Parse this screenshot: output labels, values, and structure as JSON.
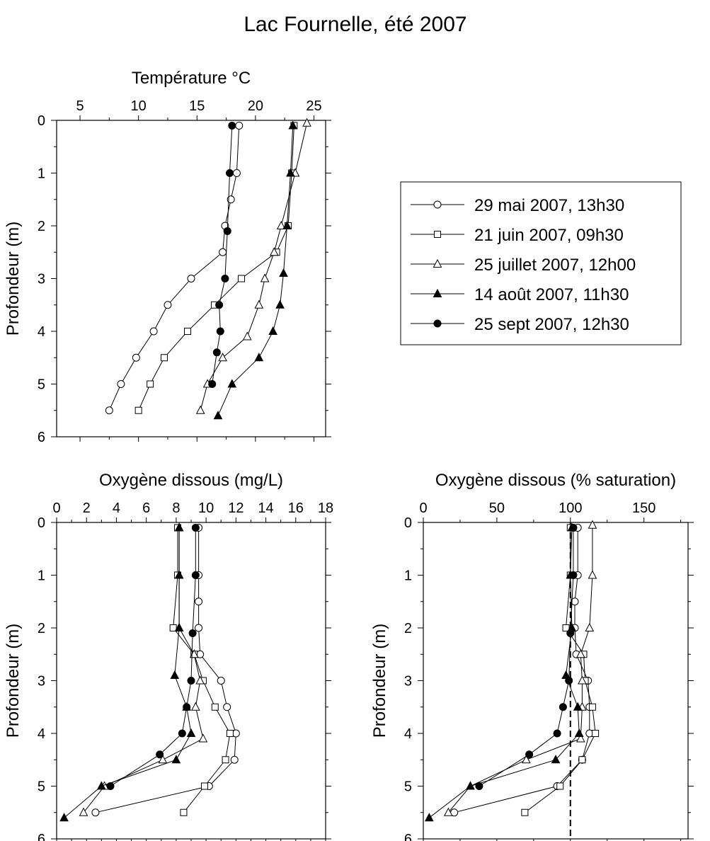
{
  "title": "Lac Fournelle, été 2007",
  "legend": {
    "entries": [
      {
        "label": "29 mai 2007, 13h30",
        "marker": "circle-open"
      },
      {
        "label": "21 juin 2007, 09h30",
        "marker": "square-open"
      },
      {
        "label": "25 juillet 2007, 12h00",
        "marker": "triangle-open"
      },
      {
        "label": "14 août 2007, 11h30",
        "marker": "triangle-filled"
      },
      {
        "label": "25 sept 2007, 12h30",
        "marker": "circle-filled"
      }
    ]
  },
  "chart_data": [
    {
      "type": "line",
      "panel": "temperature",
      "xlabel": "Température °C",
      "ylabel": "Profondeur (m)",
      "xlim": [
        3,
        26
      ],
      "ylim": [
        6,
        0
      ],
      "xticks": [
        5,
        10,
        15,
        20,
        25
      ],
      "yticks": [
        0,
        1,
        2,
        3,
        4,
        5,
        6
      ],
      "xaxis_position": "top",
      "y_inverted": true,
      "series": [
        {
          "name": "29 mai 2007, 13h30",
          "marker": "circle-open",
          "points": [
            [
              18.6,
              0.1
            ],
            [
              18.4,
              1.0
            ],
            [
              17.9,
              1.5
            ],
            [
              17.4,
              2.0
            ],
            [
              17.2,
              2.5
            ],
            [
              14.5,
              3.0
            ],
            [
              12.5,
              3.5
            ],
            [
              11.3,
              4.0
            ],
            [
              9.8,
              4.5
            ],
            [
              8.5,
              5.0
            ],
            [
              7.5,
              5.5
            ]
          ]
        },
        {
          "name": "21 juin 2007, 09h30",
          "marker": "square-open",
          "points": [
            [
              23.3,
              0.1
            ],
            [
              23.1,
              1.0
            ],
            [
              22.8,
              2.0
            ],
            [
              21.8,
              2.5
            ],
            [
              18.8,
              3.0
            ],
            [
              16.5,
              3.5
            ],
            [
              14.2,
              4.0
            ],
            [
              12.2,
              4.5
            ],
            [
              11.0,
              5.0
            ],
            [
              10.0,
              5.5
            ]
          ]
        },
        {
          "name": "25 juillet 2007, 12h00",
          "marker": "triangle-open",
          "points": [
            [
              24.4,
              0.05
            ],
            [
              23.4,
              1.0
            ],
            [
              22.2,
              2.0
            ],
            [
              21.6,
              2.5
            ],
            [
              20.8,
              3.0
            ],
            [
              20.3,
              3.5
            ],
            [
              19.3,
              4.1
            ],
            [
              17.2,
              4.5
            ],
            [
              15.9,
              5.0
            ],
            [
              15.3,
              5.5
            ]
          ]
        },
        {
          "name": "14 août 2007, 11h30",
          "marker": "triangle-filled",
          "points": [
            [
              23.2,
              0.1
            ],
            [
              23.0,
              1.0
            ],
            [
              22.7,
              2.0
            ],
            [
              22.4,
              2.9
            ],
            [
              22.1,
              3.5
            ],
            [
              21.5,
              4.0
            ],
            [
              20.3,
              4.5
            ],
            [
              18.0,
              5.0
            ],
            [
              16.8,
              5.6
            ]
          ]
        },
        {
          "name": "25 sept 2007, 12h30",
          "marker": "circle-filled",
          "points": [
            [
              18.0,
              0.1
            ],
            [
              17.8,
              1.0
            ],
            [
              17.6,
              2.1
            ],
            [
              17.4,
              3.0
            ],
            [
              16.9,
              3.5
            ],
            [
              17.0,
              4.0
            ],
            [
              16.7,
              4.4
            ],
            [
              16.3,
              5.0
            ]
          ]
        }
      ]
    },
    {
      "type": "line",
      "panel": "oxygen_mg",
      "xlabel": "Oxygène dissous (mg/L)",
      "ylabel": "Profondeur (m)",
      "xlim": [
        0,
        18
      ],
      "ylim": [
        6,
        0
      ],
      "xticks": [
        0,
        2,
        4,
        6,
        8,
        10,
        12,
        14,
        16,
        18
      ],
      "yticks": [
        0,
        1,
        2,
        3,
        4,
        5,
        6
      ],
      "xaxis_position": "top",
      "y_inverted": true,
      "series": [
        {
          "name": "29 mai 2007, 13h30",
          "marker": "circle-open",
          "points": [
            [
              9.5,
              0.1
            ],
            [
              9.5,
              1.0
            ],
            [
              9.5,
              1.5
            ],
            [
              9.5,
              2.0
            ],
            [
              9.6,
              2.5
            ],
            [
              11.0,
              3.0
            ],
            [
              11.4,
              3.5
            ],
            [
              12.0,
              4.0
            ],
            [
              11.9,
              4.5
            ],
            [
              10.2,
              5.0
            ],
            [
              2.6,
              5.5
            ]
          ]
        },
        {
          "name": "21 juin 2007, 09h30",
          "marker": "square-open",
          "points": [
            [
              8.1,
              0.1
            ],
            [
              8.1,
              1.0
            ],
            [
              7.8,
              2.0
            ],
            [
              9.2,
              2.5
            ],
            [
              9.8,
              3.0
            ],
            [
              10.6,
              3.5
            ],
            [
              11.6,
              4.0
            ],
            [
              11.3,
              4.5
            ],
            [
              9.9,
              5.0
            ],
            [
              8.5,
              5.5
            ]
          ]
        },
        {
          "name": "25 juillet 2007, 12h00",
          "marker": "triangle-open",
          "points": [
            [
              8.2,
              0.1
            ],
            [
              8.2,
              1.0
            ],
            [
              8.2,
              2.0
            ],
            [
              9.2,
              2.5
            ],
            [
              9.6,
              3.0
            ],
            [
              9.3,
              3.5
            ],
            [
              9.8,
              4.1
            ],
            [
              7.1,
              4.5
            ],
            [
              3.2,
              5.0
            ],
            [
              1.8,
              5.5
            ]
          ]
        },
        {
          "name": "14 août 2007, 11h30",
          "marker": "triangle-filled",
          "points": [
            [
              8.2,
              0.1
            ],
            [
              8.2,
              1.0
            ],
            [
              8.2,
              2.0
            ],
            [
              7.9,
              2.9
            ],
            [
              8.7,
              3.5
            ],
            [
              9.0,
              4.0
            ],
            [
              8.0,
              4.5
            ],
            [
              3.0,
              5.0
            ],
            [
              0.5,
              5.6
            ]
          ]
        },
        {
          "name": "25 sept 2007, 12h30",
          "marker": "circle-filled",
          "points": [
            [
              9.3,
              0.1
            ],
            [
              9.3,
              1.0
            ],
            [
              9.1,
              2.1
            ],
            [
              9.0,
              3.0
            ],
            [
              8.7,
              3.5
            ],
            [
              8.4,
              4.0
            ],
            [
              6.9,
              4.4
            ],
            [
              3.6,
              5.0
            ]
          ]
        }
      ]
    },
    {
      "type": "line",
      "panel": "oxygen_saturation",
      "xlabel": "Oxygène dissous (% saturation)",
      "ylabel": "Profondeur (m)",
      "xlim": [
        0,
        180
      ],
      "ylim": [
        6,
        0
      ],
      "xticks": [
        0,
        50,
        100,
        150
      ],
      "yticks": [
        0,
        1,
        2,
        3,
        4,
        5,
        6
      ],
      "xaxis_position": "top",
      "y_inverted": true,
      "reference_line": {
        "x": 100,
        "style": "dashed"
      },
      "series": [
        {
          "name": "29 mai 2007, 13h30",
          "marker": "circle-open",
          "points": [
            [
              105,
              0.1
            ],
            [
              105,
              1.0
            ],
            [
              103,
              1.5
            ],
            [
              103,
              2.0
            ],
            [
              104,
              2.5
            ],
            [
              112,
              3.0
            ],
            [
              113,
              3.5
            ],
            [
              113,
              4.0
            ],
            [
              108,
              4.5
            ],
            [
              91,
              5.0
            ],
            [
              21,
              5.5
            ]
          ]
        },
        {
          "name": "21 juin 2007, 09h30",
          "marker": "square-open",
          "points": [
            [
              100,
              0.1
            ],
            [
              100,
              1.0
            ],
            [
              97,
              2.0
            ],
            [
              109,
              2.5
            ],
            [
              110,
              3.0
            ],
            [
              115,
              3.5
            ],
            [
              117,
              4.0
            ],
            [
              108,
              4.5
            ],
            [
              93,
              5.0
            ],
            [
              69,
              5.5
            ]
          ]
        },
        {
          "name": "25 juillet 2007, 12h00",
          "marker": "triangle-open",
          "points": [
            [
              115,
              0.05
            ],
            [
              115,
              1.0
            ],
            [
              113,
              2.0
            ],
            [
              107,
              2.5
            ],
            [
              108,
              3.0
            ],
            [
              108,
              3.5
            ],
            [
              107,
              4.1
            ],
            [
              70,
              4.5
            ],
            [
              32,
              5.0
            ],
            [
              17,
              5.5
            ]
          ]
        },
        {
          "name": "14 août 2007, 11h30",
          "marker": "triangle-filled",
          "points": [
            [
              101,
              0.1
            ],
            [
              100,
              1.0
            ],
            [
              101,
              2.0
            ],
            [
              97,
              2.9
            ],
            [
              105,
              3.5
            ],
            [
              106,
              4.0
            ],
            [
              90,
              4.5
            ],
            [
              32,
              5.0
            ],
            [
              4,
              5.6
            ]
          ]
        },
        {
          "name": "25 sept 2007, 12h30",
          "marker": "circle-filled",
          "points": [
            [
              102,
              0.1
            ],
            [
              102,
              1.0
            ],
            [
              100,
              2.1
            ],
            [
              99,
              3.0
            ],
            [
              95,
              3.5
            ],
            [
              91,
              4.0
            ],
            [
              72,
              4.4
            ],
            [
              38,
              5.0
            ]
          ]
        }
      ]
    }
  ]
}
